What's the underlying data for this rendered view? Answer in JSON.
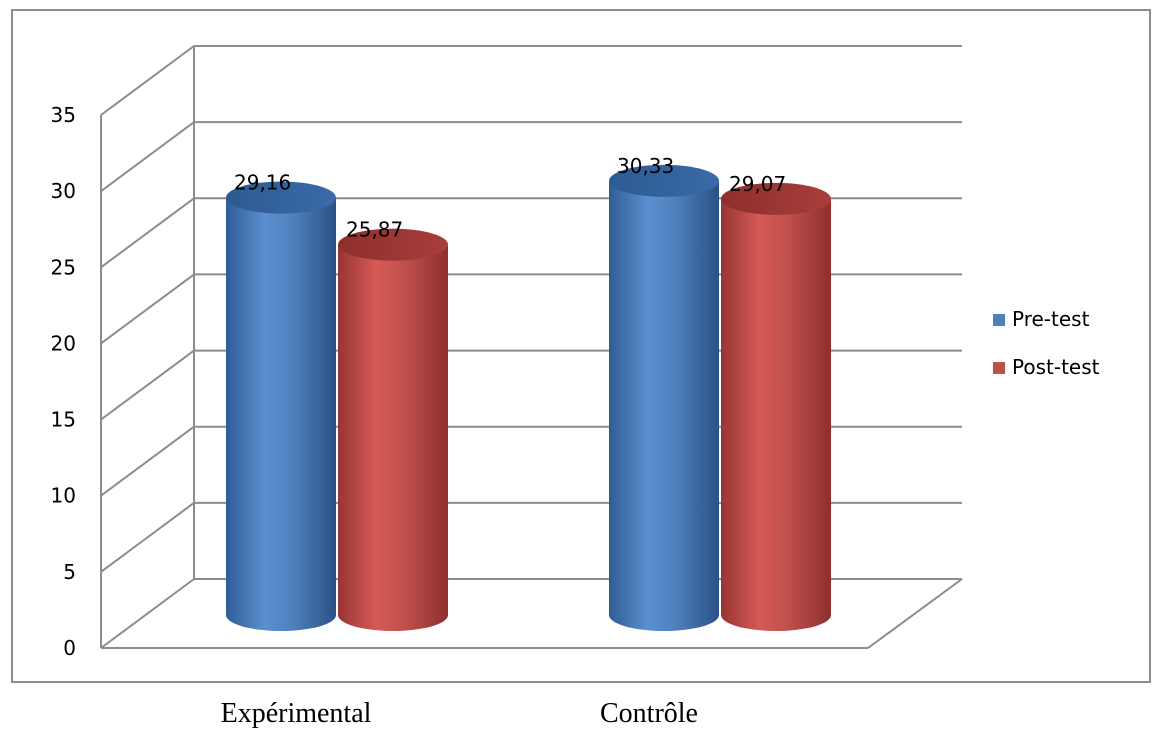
{
  "chart_data": {
    "type": "bar",
    "style": "3d-cylinder",
    "categories": [
      "Expérimental",
      "Contrôle"
    ],
    "series": [
      {
        "name": "Pre-test",
        "values": [
          29.16,
          30.33
        ],
        "labels": [
          "29,16",
          "30,33"
        ],
        "color": "#4f81bd"
      },
      {
        "name": "Post-test",
        "values": [
          25.87,
          29.07
        ],
        "labels": [
          "25,87",
          "29,07"
        ],
        "color": "#c0504d"
      }
    ],
    "ylim": [
      0,
      35
    ],
    "yticks": [
      0,
      5,
      10,
      15,
      20,
      25,
      30,
      35
    ],
    "grid": true,
    "legend_position": "right",
    "title": "",
    "xlabel": "",
    "ylabel": ""
  }
}
